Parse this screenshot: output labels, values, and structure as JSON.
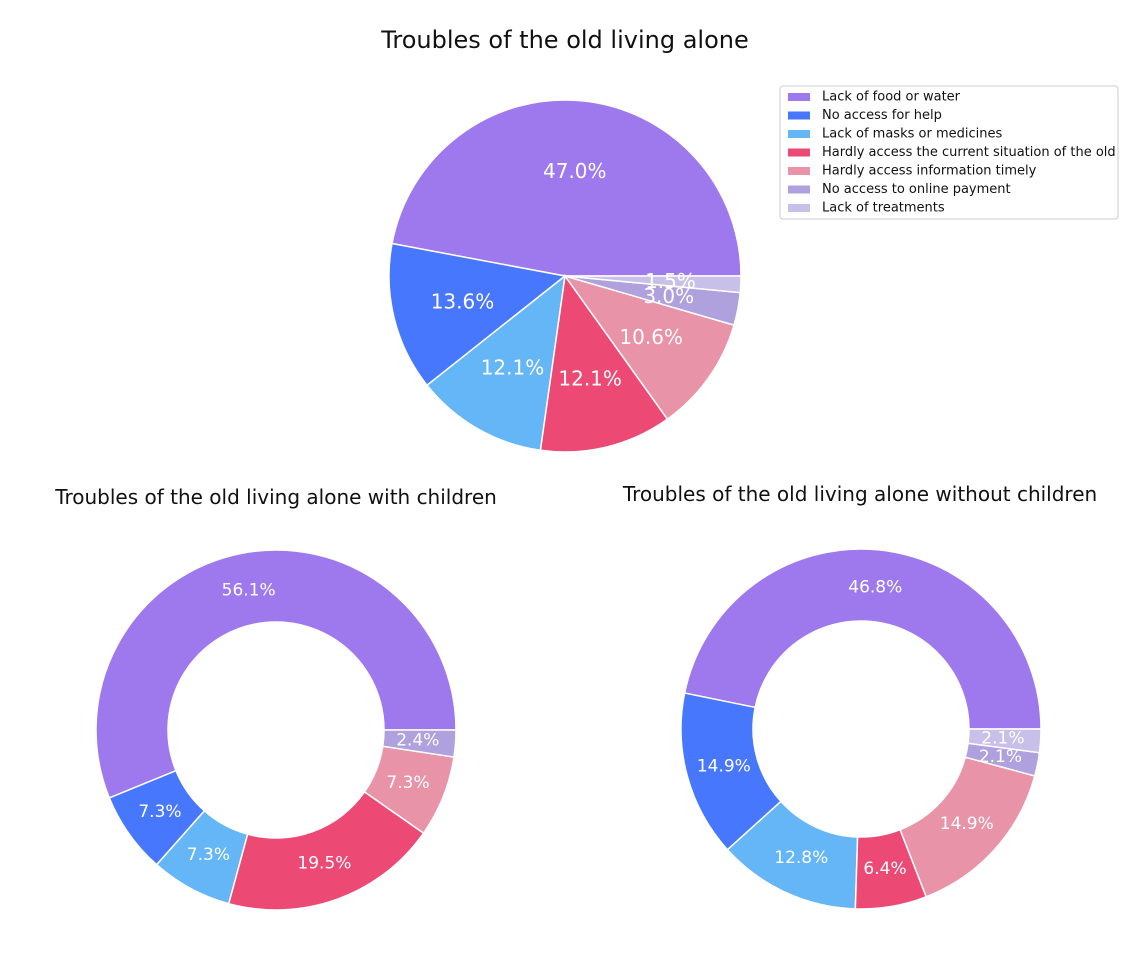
{
  "chart_data": [
    {
      "type": "pie",
      "title": "Troubles of the old living alone",
      "categories": [
        "Lack of food or water",
        "No access for help",
        "Lack of masks or medicines",
        "Hardly access the current situation of the old",
        "Hardly access information timely",
        "No access to online payment",
        "Lack of treatments"
      ],
      "values": [
        47.0,
        13.6,
        12.1,
        12.1,
        10.6,
        3.0,
        1.5
      ],
      "labels": [
        "47.0%",
        "13.6%",
        "12.1%",
        "12.1%",
        "10.6%",
        "3.0%",
        "1.5%"
      ],
      "legend": "top-right"
    },
    {
      "type": "pie",
      "title": "Troubles of the old living alone with children",
      "categories": [
        "Lack of food or water",
        "No access for help",
        "Lack of masks or medicines",
        "Hardly access the current situation of the old",
        "Hardly access information timely",
        "No access to online payment"
      ],
      "values": [
        56.1,
        7.3,
        7.3,
        19.5,
        7.3,
        2.4
      ],
      "labels": [
        "56.1%",
        "7.3%",
        "7.3%",
        "19.5%",
        "7.3%",
        "2.4%"
      ]
    },
    {
      "type": "pie",
      "title": "Troubles of the old living alone without children",
      "categories": [
        "Lack of food or water",
        "No access for help",
        "Lack of masks or medicines",
        "Hardly access the current situation of the old",
        "Hardly access information timely",
        "No access to online payment",
        "Lack of treatments"
      ],
      "values": [
        46.8,
        14.9,
        12.8,
        6.4,
        14.9,
        2.1,
        2.1
      ],
      "labels": [
        "46.8%",
        "14.9%",
        "12.8%",
        "6.4%",
        "14.9%",
        "2.1%",
        "2.1%"
      ]
    }
  ],
  "legend": {
    "items": [
      "Lack of food or water",
      "No access for help",
      "Lack of masks or medicines",
      "Hardly access the current situation of the old",
      "Hardly access information timely",
      "No access to online payment",
      "Lack of treatments"
    ]
  },
  "colors": {
    "Lack of food or water": "#9d79ed",
    "No access for help": "#4777fd",
    "Lack of masks or medicines": "#64b6f6",
    "Hardly access the current situation of the old": "#ec4a74",
    "Hardly access information timely": "#e893a8",
    "No access to online payment": "#afa1dd",
    "Lack of treatments": "#c9c0ea"
  }
}
